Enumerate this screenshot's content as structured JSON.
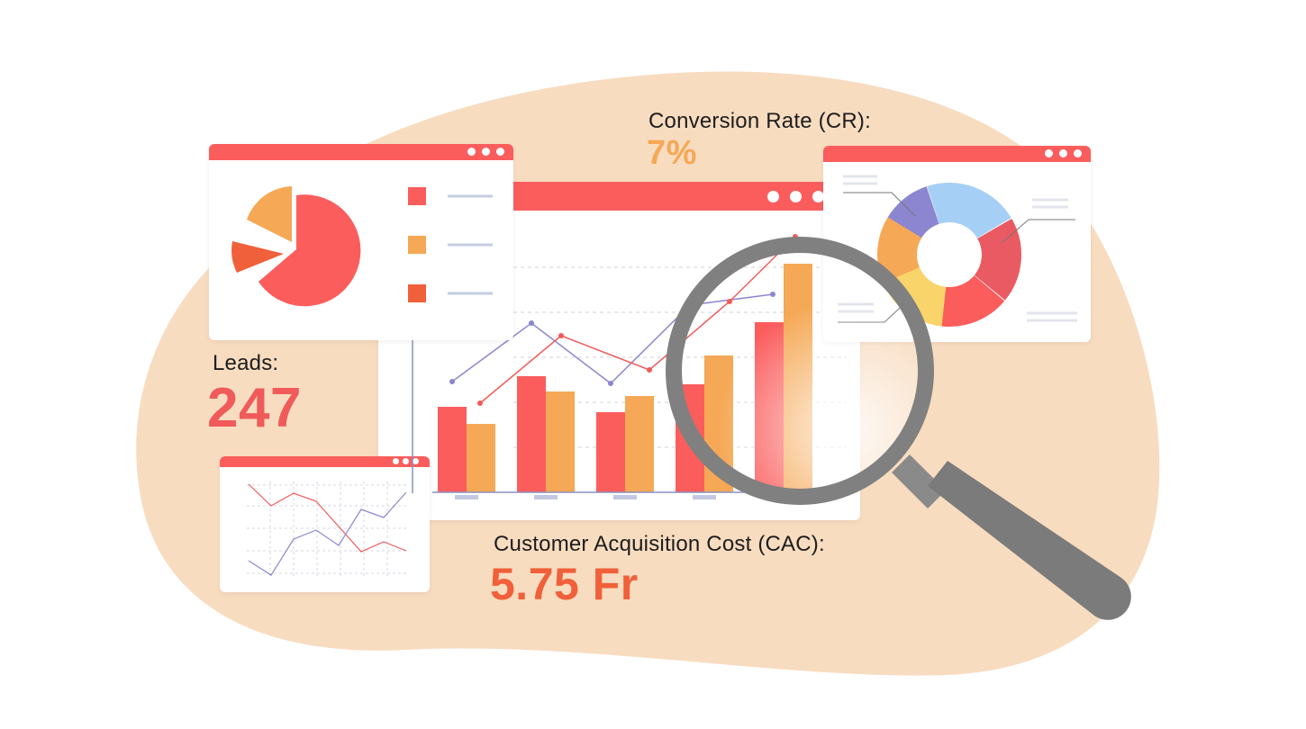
{
  "metrics": {
    "conversion": {
      "label": "Conversion Rate (CR):",
      "value": "7%"
    },
    "leads": {
      "label": "Leads:",
      "value": "247"
    },
    "cac": {
      "label": "Customer Acquisition Cost (CAC):",
      "value": "5.75 Fr"
    }
  },
  "colors": {
    "background_blob": "#f8dcc0",
    "accent_red": "#fb5d5d",
    "accent_orange": "#f5a855",
    "accent_dark_orange": "#f0603a",
    "conversion_value": "#f5a855",
    "leads_value": "#f05a5a",
    "cac_value": "#f0603a",
    "magnifier": "#808080"
  },
  "icons": {
    "window_controls": "three-dots",
    "magnifier": "magnifying-glass"
  }
}
